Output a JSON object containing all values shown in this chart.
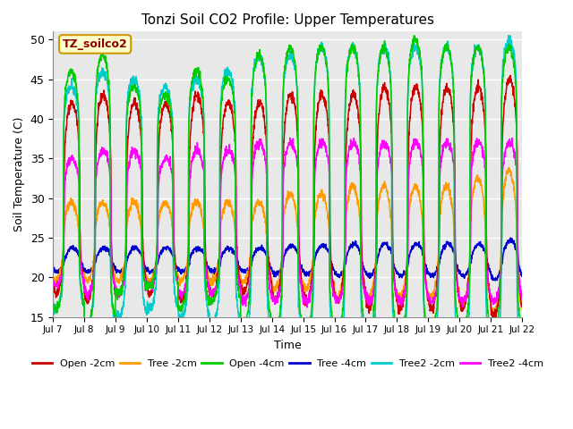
{
  "title": "Tonzi Soil CO2 Profile: Upper Temperatures",
  "ylabel": "Soil Temperature (C)",
  "xlabel": "Time",
  "annotation": "TZ_soilco2",
  "ylim": [
    15,
    51
  ],
  "yticks": [
    15,
    20,
    25,
    30,
    35,
    40,
    45,
    50
  ],
  "xtick_labels": [
    "Jul 7",
    "Jul 8",
    "Jul 9",
    "Jul 10",
    "Jul 11",
    "Jul 12",
    "Jul 13",
    "Jul 14",
    "Jul 15",
    "Jul 16",
    "Jul 17",
    "Jul 18",
    "Jul 19",
    "Jul 20",
    "Jul 21",
    "Jul 22"
  ],
  "series_colors": {
    "Open -2cm": "#cc0000",
    "Tree -2cm": "#ff9900",
    "Open -4cm": "#00cc00",
    "Tree -4cm": "#0000cc",
    "Tree2 -2cm": "#00cccc",
    "Tree2 -4cm": "#ff00ff"
  },
  "background_color": "#ffffff",
  "plot_bg_color": "#e8e8e8",
  "grid_color": "#ffffff",
  "n_days": 15,
  "points_per_day": 144
}
